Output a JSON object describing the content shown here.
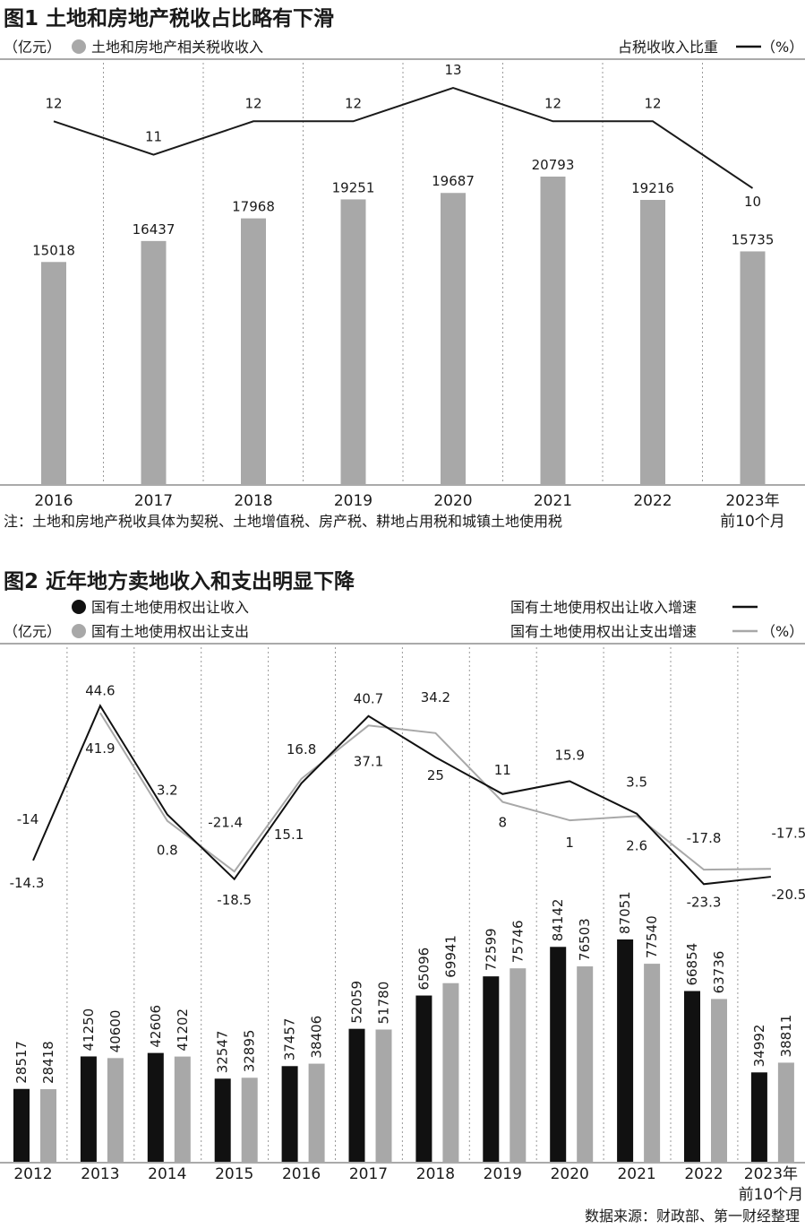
{
  "chart_data": [
    {
      "type": "bar",
      "title": "图1 土地和房地产税收占比略有下滑",
      "unit_left": "（亿元）",
      "legend_bar": "土地和房地产相关税收收入",
      "legend_line": "占税收收入比重",
      "unit_right": "（%）",
      "categories": [
        "2016",
        "2017",
        "2018",
        "2019",
        "2020",
        "2021",
        "2022",
        "2023年"
      ],
      "category_sub": {
        "2023年": "前10个月"
      },
      "series": [
        {
          "name": "土地和房地产相关税收收入",
          "type": "bar",
          "values": [
            15018,
            16437,
            17968,
            19251,
            19687,
            20793,
            19216,
            15735
          ]
        },
        {
          "name": "占税收收入比重",
          "type": "line",
          "values": [
            12,
            11,
            12,
            12,
            13,
            12,
            12,
            10
          ]
        }
      ],
      "note": "注：土地和房地产税收具体为契税、土地增值税、房产税、耕地占用税和城镇土地使用税",
      "colors": {
        "bar": "#a8a8a8",
        "line": "#1a1a1a"
      }
    },
    {
      "type": "bar",
      "title": "图2 近年地方卖地收入和支出明显下降",
      "unit_left": "（亿元）",
      "unit_right": "（%）",
      "categories": [
        "2012",
        "2013",
        "2014",
        "2015",
        "2016",
        "2017",
        "2018",
        "2019",
        "2020",
        "2021",
        "2022",
        "2023年"
      ],
      "category_sub": {
        "2023年": "前10个月"
      },
      "series": [
        {
          "name": "国有土地使用权出让收入",
          "type": "bar",
          "values": [
            28517,
            41250,
            42606,
            32547,
            37457,
            52059,
            65096,
            72599,
            84142,
            87051,
            66854,
            34992
          ]
        },
        {
          "name": "国有土地使用权出让支出",
          "type": "bar",
          "values": [
            28418,
            40600,
            41202,
            32895,
            38406,
            51780,
            69941,
            75746,
            76503,
            77540,
            63736,
            38811
          ]
        },
        {
          "name": "国有土地使用权出让收入增速",
          "type": "line",
          "values": [
            -14.3,
            44.6,
            3.2,
            -21.4,
            15.1,
            40.7,
            25,
            11,
            15.9,
            3.5,
            -23.3,
            -20.5
          ]
        },
        {
          "name": "国有土地使用权出让支出增速",
          "type": "line",
          "values": [
            -14,
            41.9,
            0.8,
            -18.5,
            16.8,
            37.1,
            34.2,
            8,
            1,
            2.6,
            -17.8,
            -17.5
          ]
        }
      ],
      "source": "数据来源：财政部、第一财经整理",
      "colors": {
        "income": "#111111",
        "expense": "#a8a8a8",
        "income_line": "#111111",
        "expense_line": "#a8a8a8"
      }
    }
  ]
}
